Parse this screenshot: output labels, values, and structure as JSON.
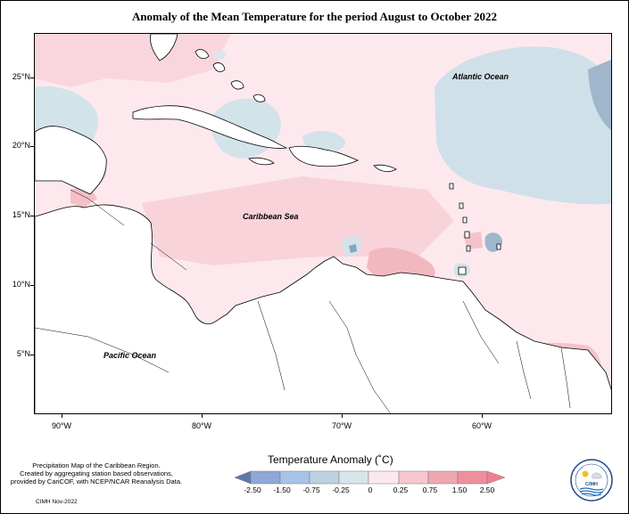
{
  "title": "Anomaly of the Mean Temperature for the period August to October 2022",
  "axes": {
    "lat_labels": [
      "25°N",
      "20°N",
      "15°N",
      "10°N",
      "5°N"
    ],
    "lon_labels": [
      "90°W",
      "80°W",
      "70°W",
      "60°W"
    ]
  },
  "labels": {
    "atlantic": "Atlantic Ocean",
    "caribbean": "Caribbean Sea",
    "pacific": "Pacific Ocean"
  },
  "credit": {
    "line1": "Precipitation Map of the Caribbean Region.",
    "line2": "Created by aggregating station based observations,",
    "line3": "provided by CariCOF, with NCEP/NCAR Reanalysis Data.",
    "date": "CIMH Nov-2022"
  },
  "legend": {
    "title": "Temperature Anomaly (˚C)",
    "ticks": [
      "-2.50",
      "-1.50",
      "-0.75",
      "-0.25",
      "0",
      "0.25",
      "0.75",
      "1.50",
      "2.50"
    ],
    "colors": [
      "#5e79a8",
      "#8ea8d8",
      "#a6c4e8",
      "#bcd2e0",
      "#d6e6ea",
      "#fde9ed",
      "#f7c7cf",
      "#f0a8b0",
      "#f08090"
    ]
  },
  "logo": {
    "text": "CIMH"
  }
}
